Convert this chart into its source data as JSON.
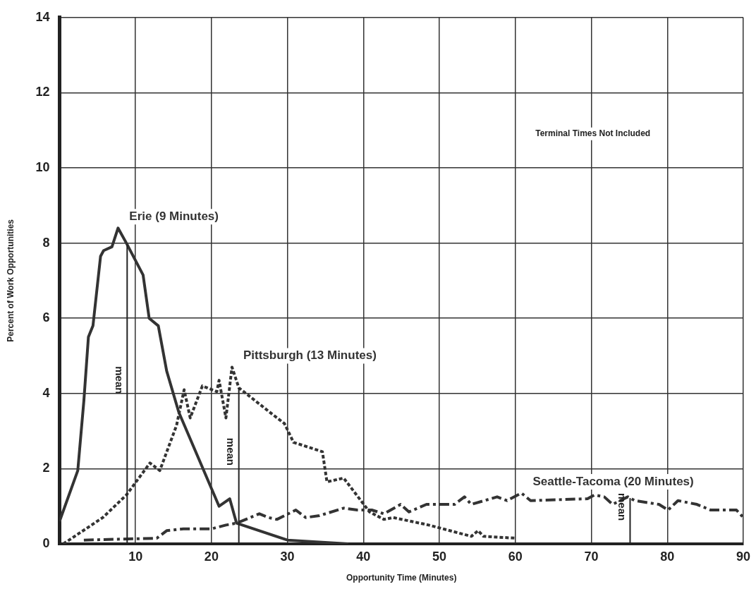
{
  "chart_data": {
    "type": "line",
    "xlabel": "Opportunity Time (Minutes)",
    "ylabel": "Percent of Work Opportunities",
    "xlim": [
      0,
      90
    ],
    "xticks": [
      10,
      20,
      30,
      40,
      50,
      60,
      70,
      80,
      90
    ],
    "ylim": [
      0,
      14
    ],
    "yticks": [
      0,
      2,
      4,
      6,
      8,
      10,
      12,
      14
    ],
    "grid": true,
    "legend": false,
    "marker": "none",
    "annotations": [
      "Terminal Times Not Included"
    ],
    "ref_lines": [
      {
        "axis": "x",
        "value": 8.9,
        "label": "mean"
      },
      {
        "axis": "x",
        "value": 23.6,
        "label": "mean"
      },
      {
        "axis": "x",
        "value": 75.1,
        "label": "mean"
      }
    ],
    "series": [
      {
        "name": "Erie (9 Minutes)",
        "color": "#333333",
        "line_style": "solid",
        "x": [
          0,
          2.4,
          3.2,
          3.8,
          4.4,
          5.4,
          5.8,
          6.9,
          7.7,
          8.8,
          11.0,
          11.8,
          13.0,
          14.1,
          15.7,
          21.0,
          22.4,
          23.3,
          30,
          38
        ],
        "values": [
          0.6,
          1.95,
          3.8,
          5.5,
          5.8,
          7.65,
          7.8,
          7.9,
          8.4,
          8.0,
          7.15,
          6.0,
          5.8,
          4.6,
          3.5,
          1.0,
          1.2,
          0.55,
          0.1,
          0
        ]
      },
      {
        "name": "Pittsburgh (13 Minutes)",
        "color": "#333333",
        "line_style": "dotted",
        "x": [
          0.5,
          5.7,
          8.8,
          11.9,
          13.2,
          15.4,
          16.4,
          17.2,
          18.8,
          20.7,
          21.0,
          21.9,
          22.7,
          23.6,
          28,
          29.6,
          30.8,
          34.6,
          35.2,
          37.4,
          40.8,
          42.7,
          43.9,
          48.6,
          54.2,
          55.1,
          55.8,
          60.1
        ],
        "values": [
          0,
          0.7,
          1.3,
          2.15,
          1.95,
          3.15,
          4.1,
          3.35,
          4.2,
          4.05,
          4.35,
          3.35,
          4.7,
          4.15,
          3.45,
          3.2,
          2.7,
          2.45,
          1.65,
          1.75,
          0.85,
          0.65,
          0.7,
          0.5,
          0.2,
          0.35,
          0.2,
          0.15
        ]
      },
      {
        "name": "Seattle-Tacoma (20 Minutes)",
        "color": "#333333",
        "line_style": "dashed",
        "x": [
          3.2,
          12.8,
          14.1,
          16.3,
          20,
          21.9,
          23.3,
          26.3,
          27.5,
          28.6,
          31.1,
          32.4,
          34.2,
          37.4,
          39.2,
          41.1,
          42.7,
          44.9,
          46.0,
          48.3,
          52,
          53.3,
          54.2,
          57.6,
          58.9,
          60.8,
          62,
          69.5,
          70.4,
          71.7,
          72.8,
          74.8,
          75.7,
          78.9,
          80.1,
          81.4,
          83.9,
          85.7,
          89.1,
          90
        ],
        "values": [
          0.1,
          0.15,
          0.35,
          0.4,
          0.4,
          0.5,
          0.55,
          0.8,
          0.7,
          0.65,
          0.9,
          0.7,
          0.75,
          0.95,
          0.9,
          0.9,
          0.8,
          1.05,
          0.85,
          1.05,
          1.05,
          1.25,
          1.05,
          1.25,
          1.15,
          1.35,
          1.15,
          1.2,
          1.3,
          1.25,
          1.05,
          1.25,
          1.15,
          1.05,
          0.9,
          1.15,
          1.05,
          0.9,
          0.9,
          0.7
        ]
      }
    ]
  }
}
